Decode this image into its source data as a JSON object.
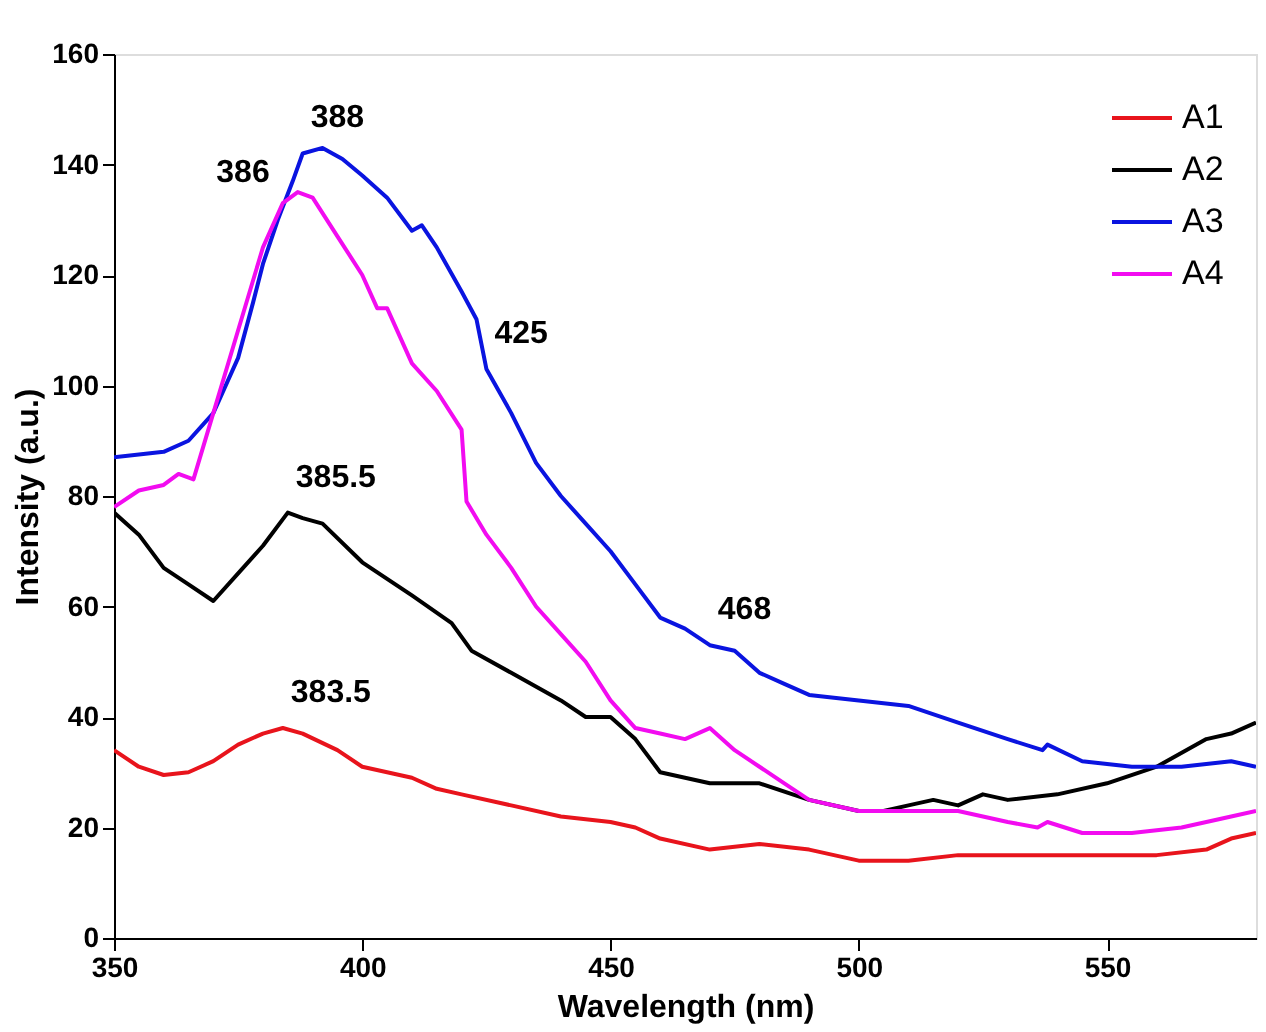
{
  "chart_data": {
    "type": "line",
    "xlabel": "Wavelength (nm)",
    "ylabel": "Intensity (a.u.)",
    "xlim": [
      350,
      580
    ],
    "xticks": [
      350,
      400,
      450,
      500,
      550
    ],
    "ylim": [
      0,
      160
    ],
    "yticks": [
      0,
      20,
      40,
      60,
      80,
      100,
      120,
      140,
      160
    ],
    "grid": false,
    "legend": "top right",
    "marker": "none",
    "line_style": "solid",
    "series": [
      {
        "name": "A1",
        "color": "#e8141c",
        "x": [
          350,
          355,
          360,
          365,
          370,
          375,
          380,
          384,
          388,
          395,
          400,
          410,
          415,
          420,
          430,
          440,
          450,
          455,
          460,
          470,
          480,
          490,
          500,
          510,
          520,
          530,
          540,
          550,
          560,
          570,
          575,
          580
        ],
        "values": [
          34,
          31,
          29.5,
          30,
          32,
          35,
          37,
          38,
          37,
          34,
          31,
          29,
          27,
          26,
          24,
          22,
          21,
          20,
          18,
          16,
          17,
          16,
          14,
          14,
          15,
          15,
          15,
          15,
          15,
          16,
          18,
          19
        ]
      },
      {
        "name": "A2",
        "color": "#000000",
        "x": [
          350,
          355,
          360,
          365,
          370,
          375,
          380,
          385,
          388,
          392,
          400,
          410,
          418,
          422,
          430,
          440,
          445,
          450,
          455,
          460,
          465,
          470,
          480,
          490,
          500,
          505,
          510,
          515,
          520,
          525,
          530,
          540,
          550,
          560,
          570,
          575,
          580
        ],
        "values": [
          77,
          73,
          67,
          64,
          61,
          66,
          71,
          77,
          76,
          75,
          68,
          62,
          57,
          52,
          48,
          43,
          40,
          40,
          36,
          30,
          29,
          28,
          28,
          25,
          23,
          23,
          24,
          25,
          24,
          26,
          25,
          26,
          28,
          31,
          36,
          37,
          39
        ]
      },
      {
        "name": "A3",
        "color": "#0a14e0",
        "x": [
          350,
          360,
          365,
          370,
          375,
          378,
          380,
          383,
          386,
          388,
          392,
          396,
          400,
          405,
          410,
          412,
          415,
          420,
          423,
          425,
          430,
          435,
          440,
          445,
          450,
          455,
          460,
          465,
          470,
          475,
          480,
          485,
          490,
          500,
          510,
          520,
          530,
          537,
          538,
          545,
          555,
          565,
          575,
          580
        ],
        "values": [
          87,
          88,
          90,
          95,
          105,
          115,
          122,
          130,
          137,
          142,
          143,
          141,
          138,
          134,
          128,
          129,
          125,
          117,
          112,
          103,
          95,
          86,
          80,
          75,
          70,
          64,
          58,
          56,
          53,
          52,
          48,
          46,
          44,
          43,
          42,
          39,
          36,
          34,
          35,
          32,
          31,
          31,
          32,
          31
        ]
      },
      {
        "name": "A4",
        "color": "#f20cf0",
        "x": [
          350,
          355,
          360,
          363,
          366,
          370,
          375,
          380,
          384,
          387,
          390,
          395,
          400,
          403,
          405,
          410,
          415,
          420,
          421,
          425,
          430,
          435,
          440,
          445,
          450,
          455,
          460,
          465,
          470,
          475,
          480,
          485,
          490,
          500,
          510,
          520,
          530,
          536,
          538,
          545,
          555,
          565,
          575,
          580
        ],
        "values": [
          78,
          81,
          82,
          84,
          83,
          95,
          110,
          125,
          133,
          135,
          134,
          127,
          120,
          114,
          114,
          104,
          99,
          92,
          79,
          73,
          67,
          60,
          55,
          50,
          43,
          38,
          37,
          36,
          38,
          34,
          31,
          28,
          25,
          23,
          23,
          23,
          21,
          20,
          21,
          19,
          19,
          20,
          22,
          23
        ]
      }
    ],
    "annotations": [
      {
        "text": "388",
        "x": 388,
        "y": 142
      },
      {
        "text": "386",
        "x": 387,
        "y": 135
      },
      {
        "text": "425",
        "x": 425,
        "y": 103
      },
      {
        "text": "385.5",
        "x": 385,
        "y": 77
      },
      {
        "text": "383.5",
        "x": 384,
        "y": 38
      },
      {
        "text": "468",
        "x": 470,
        "y": 53
      }
    ]
  }
}
